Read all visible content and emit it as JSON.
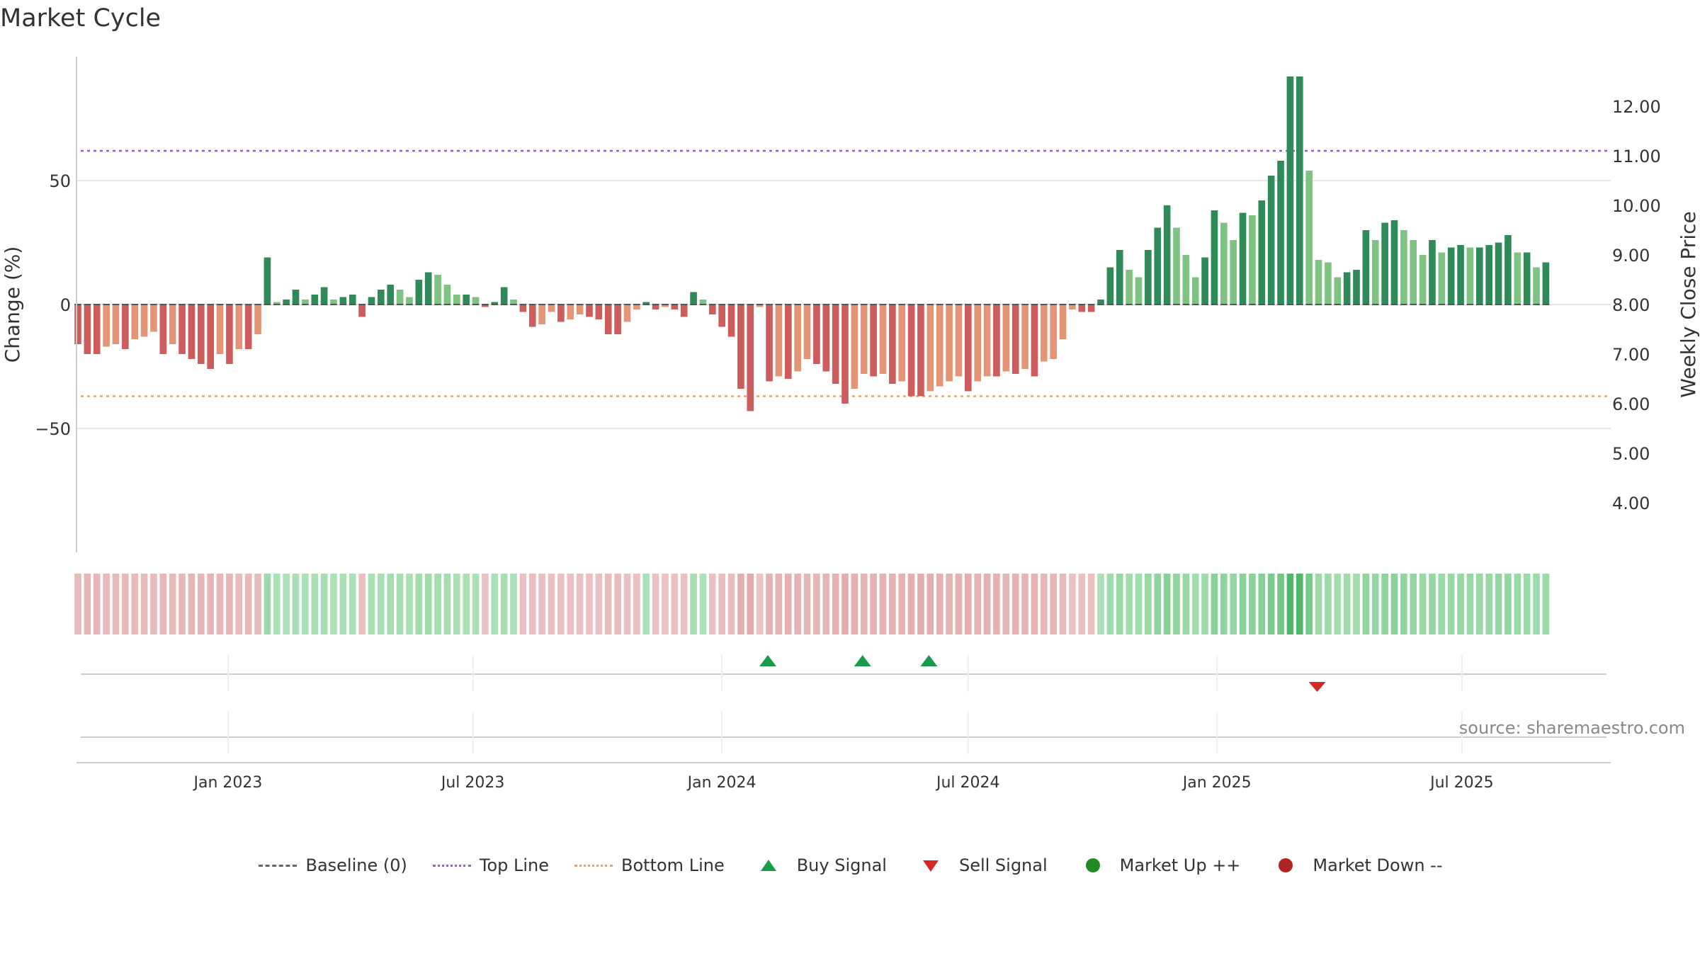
{
  "title": "Market Cycle",
  "source_note": "source: sharemaestro.com",
  "chart_data": {
    "type": "bar",
    "title": "Market Cycle",
    "ylabel": "Change (%)",
    "ylabel_right": "Weekly Close Price",
    "ylim": [
      -100,
      100
    ],
    "yticks": [
      -50,
      0,
      50
    ],
    "ytick_labels": [
      "−50",
      "0",
      "50"
    ],
    "ylim_right": [
      3.0,
      13.0
    ],
    "yticks_right": [
      4,
      5,
      6,
      7,
      8,
      9,
      10,
      11,
      12
    ],
    "ytick_labels_right": [
      "4.00",
      "5.00",
      "6.00",
      "7.00",
      "8.00",
      "9.00",
      "10.00",
      "11.00",
      "12.00"
    ],
    "x_start": "2022-09-11",
    "x_end": "2025-10-19",
    "x_ticks": [
      {
        "date": "2023-01-01",
        "label": "Jan 2023"
      },
      {
        "date": "2023-07-01",
        "label": "Jul 2023"
      },
      {
        "date": "2024-01-01",
        "label": "Jan 2024"
      },
      {
        "date": "2024-07-01",
        "label": "Jul 2024"
      },
      {
        "date": "2025-01-01",
        "label": "Jan 2025"
      },
      {
        "date": "2025-07-01",
        "label": "Jul 2025"
      }
    ],
    "top_line": 62,
    "bottom_line": -37,
    "series_first_week": "2022-09-11",
    "series_interval_days": 7,
    "values": [
      -16,
      -20,
      -20,
      -17,
      -16,
      -18,
      -14,
      -13,
      -11,
      -20,
      -16,
      -20,
      -22,
      -24,
      -26,
      -20,
      -24,
      -18,
      -18,
      -12,
      19,
      1,
      2,
      6,
      2,
      4,
      7,
      2,
      3,
      4,
      -5,
      3,
      6,
      8,
      6,
      3,
      10,
      13,
      12,
      8,
      4,
      4,
      3,
      -1,
      1,
      7,
      2,
      -3,
      -9,
      -8,
      -3,
      -7,
      -6,
      -4,
      -5,
      -6,
      -12,
      -12,
      -7,
      -2,
      1,
      -2,
      -1,
      -2,
      -5,
      5,
      2,
      -4,
      -9,
      -13,
      -34,
      -43,
      -1,
      -31,
      -29,
      -30,
      -27,
      -22,
      -24,
      -27,
      -32,
      -40,
      -34,
      -28,
      -29,
      -28,
      -32,
      -31,
      -37,
      -37,
      -35,
      -33,
      -31,
      -29,
      -35,
      -31,
      -29,
      -29,
      -27,
      -28,
      -26,
      -29,
      -23,
      -22,
      -14,
      -2,
      -3,
      -3,
      2,
      15,
      22,
      14,
      11,
      22,
      31,
      40,
      31,
      20,
      11,
      19,
      38,
      33,
      26,
      37,
      36,
      42,
      52,
      58,
      92,
      92,
      54,
      18,
      17,
      11,
      13,
      14,
      30,
      26,
      33,
      34,
      30,
      26,
      20,
      26,
      21,
      23,
      24,
      23,
      23,
      24,
      25,
      28,
      21,
      21,
      15,
      17
    ],
    "signals": [
      {
        "type": "buy",
        "date": "2024-02-04"
      },
      {
        "type": "buy",
        "date": "2024-04-14"
      },
      {
        "type": "buy",
        "date": "2024-06-02"
      },
      {
        "type": "sell",
        "date": "2025-03-16"
      }
    ],
    "colors": {
      "strong_up": "#2e8b57",
      "weak_up": "#7fc382",
      "strong_down": "#cd5c5c",
      "weak_down": "#e39575",
      "top_line": "#9b59d0",
      "bottom_line": "#f0a060",
      "buy": "#1a9b4b",
      "sell": "#d62728",
      "market_up": "#1f8b24",
      "market_down": "#b22222"
    }
  },
  "legend": [
    {
      "label": "Baseline (0)",
      "kind": "dash",
      "color": "#666666"
    },
    {
      "label": "Top Line",
      "kind": "dot",
      "color": "#9b59d0"
    },
    {
      "label": "Bottom Line",
      "kind": "dot",
      "color": "#f0a060"
    },
    {
      "label": "Buy Signal",
      "kind": "tri-up",
      "color": "#1a9b4b"
    },
    {
      "label": "Sell Signal",
      "kind": "tri-down",
      "color": "#d62728"
    },
    {
      "label": "Market Up ++",
      "kind": "circle",
      "color": "#1f8b24"
    },
    {
      "label": "Market Down --",
      "kind": "circle",
      "color": "#b22222"
    }
  ]
}
